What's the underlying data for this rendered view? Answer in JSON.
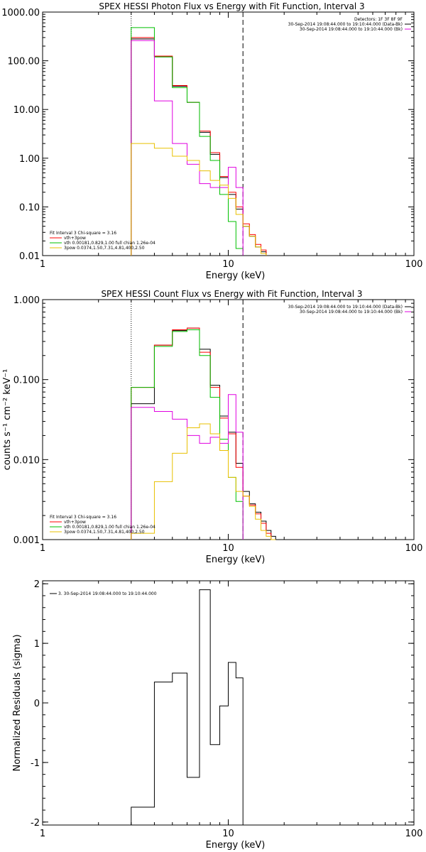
{
  "colors": {
    "black": "#000000",
    "red": "#ff0000",
    "green": "#00c000",
    "magenta": "#e000e0",
    "yellow": "#e8c000"
  },
  "chart_data": [
    {
      "type": "line",
      "title": "SPEX HESSI Photon Flux vs Energy with Fit Function, Interval 3",
      "xlabel": "Energy (keV)",
      "ylabel": "",
      "xscale": "log",
      "yscale": "log",
      "xlim": [
        1,
        100
      ],
      "ylim": [
        0.01,
        1000
      ],
      "xticks": [
        {
          "v": 1,
          "label": "1"
        },
        {
          "v": 10,
          "label": "10"
        },
        {
          "v": 100,
          "label": "100"
        }
      ],
      "yticks": [
        {
          "v": 1000,
          "label": "1000.00"
        },
        {
          "v": 100,
          "label": "100.00"
        },
        {
          "v": 10,
          "label": "10.00"
        },
        {
          "v": 1,
          "label": "1.00"
        },
        {
          "v": 0.1,
          "label": "0.10"
        },
        {
          "v": 0.01,
          "label": "0.01"
        }
      ],
      "vlines": [
        {
          "x": 3.0,
          "style": "dotted"
        },
        {
          "x": 12.0,
          "style": "dashed"
        }
      ],
      "legend_right": [
        "Detectors: 1F 3F 8F 9F",
        "30-Sep-2014 19:08:44.000 to 19:10:44.000 (Data-Bk)",
        "30-Sep-2014 19:08:44.000 to 19:10:44.000 (Bk)"
      ],
      "legend_left": [
        "Fit Interval  3   Chi-square = 3.16",
        "vth+3pow",
        "vth 0.00181,0.829,1.00  full chian 1.26e-04",
        "3pow 0.0374,1.50,7.31,4.81,400,2.50"
      ],
      "series": [
        {
          "color": "black",
          "edges": [
            3,
            4,
            5,
            6,
            7,
            8,
            9,
            10,
            11,
            12,
            13,
            14,
            15,
            16
          ],
          "values": [
            280,
            120,
            30,
            14,
            3.4,
            1.2,
            0.4,
            0.18,
            0.09,
            0.04,
            0.025,
            0.015,
            0.012
          ]
        },
        {
          "color": "red",
          "edges": [
            3,
            4,
            5,
            6,
            7,
            8,
            9,
            10,
            11,
            12,
            13,
            14,
            15,
            16
          ],
          "values": [
            300,
            125,
            31,
            14,
            3.6,
            1.3,
            0.42,
            0.2,
            0.1,
            0.045,
            0.027,
            0.017,
            0.013
          ]
        },
        {
          "color": "green",
          "edges": [
            3,
            4,
            5,
            6,
            7,
            8,
            9,
            10,
            11,
            12
          ],
          "values": [
            480,
            120,
            28,
            14,
            2.8,
            0.9,
            0.18,
            0.05,
            0.014
          ]
        },
        {
          "color": "magenta",
          "edges": [
            3,
            4,
            5,
            6,
            7,
            8,
            9,
            10,
            11,
            12
          ],
          "values": [
            260,
            15,
            2,
            0.75,
            0.3,
            0.25,
            0.25,
            0.65,
            0.25
          ]
        },
        {
          "color": "yellow",
          "edges": [
            3,
            4,
            5,
            6,
            7,
            8,
            9,
            10,
            11,
            12,
            13,
            14,
            15,
            16
          ],
          "values": [
            2.0,
            1.6,
            1.1,
            0.9,
            0.55,
            0.35,
            0.28,
            0.15,
            0.07,
            0.04,
            0.025,
            0.015,
            0.011
          ]
        }
      ]
    },
    {
      "type": "line",
      "title": "SPEX HESSI Count Flux vs Energy with Fit Function, Interval 3",
      "xlabel": "Energy (keV)",
      "ylabel": "counts s⁻¹ cm⁻² keV⁻¹",
      "xscale": "log",
      "yscale": "log",
      "xlim": [
        1,
        100
      ],
      "ylim": [
        0.001,
        1
      ],
      "xticks": [
        {
          "v": 1,
          "label": "1"
        },
        {
          "v": 10,
          "label": "10"
        },
        {
          "v": 100,
          "label": "100"
        }
      ],
      "yticks": [
        {
          "v": 1,
          "label": "1.000"
        },
        {
          "v": 0.1,
          "label": "0.100"
        },
        {
          "v": 0.01,
          "label": "0.010"
        },
        {
          "v": 0.001,
          "label": "0.001"
        }
      ],
      "vlines": [
        {
          "x": 3.0,
          "style": "dotted"
        },
        {
          "x": 12.0,
          "style": "dashed"
        }
      ],
      "legend_right": [
        "30-Sep-2014 19:08:44.000 to 19:10:44.000 (Data-Bk)",
        "30-Sep-2014 19:08:44.000 to 19:10:44.000 (Bk)"
      ],
      "legend_left": [
        "Fit Interval  3   Chi-square = 3.16",
        "vth+3pow",
        "vth 0.00181,0.829,1.00  full chian 1.26e-04",
        "3pow 0.0374,1.50,7.31,4.81,400,2.50"
      ],
      "series": [
        {
          "color": "black",
          "edges": [
            3,
            4,
            5,
            6,
            7,
            8,
            9,
            10,
            11,
            12,
            13,
            14,
            15,
            16,
            17,
            18
          ],
          "values": [
            0.05,
            0.27,
            0.41,
            0.44,
            0.24,
            0.085,
            0.035,
            0.022,
            0.009,
            0.004,
            0.0028,
            0.0022,
            0.0017,
            0.0013,
            0.0011
          ]
        },
        {
          "color": "red",
          "edges": [
            3,
            4,
            5,
            6,
            7,
            8,
            9,
            10,
            11,
            12,
            13,
            14,
            15,
            16,
            17,
            18
          ],
          "values": [
            0.08,
            0.27,
            0.42,
            0.44,
            0.22,
            0.08,
            0.033,
            0.021,
            0.008,
            0.0035,
            0.0027,
            0.0021,
            0.0016,
            0.0012,
            0.001
          ]
        },
        {
          "color": "green",
          "edges": [
            3,
            4,
            5,
            6,
            7,
            8,
            9,
            10,
            11,
            12
          ],
          "values": [
            0.08,
            0.26,
            0.4,
            0.42,
            0.2,
            0.06,
            0.018,
            0.006,
            0.003
          ]
        },
        {
          "color": "magenta",
          "edges": [
            3,
            4,
            5,
            6,
            7,
            8,
            9,
            10,
            11,
            12
          ],
          "values": [
            0.045,
            0.04,
            0.032,
            0.02,
            0.016,
            0.019,
            0.016,
            0.065,
            0.022
          ]
        },
        {
          "color": "yellow",
          "edges": [
            3,
            4,
            5,
            6,
            7,
            8,
            9,
            10,
            11,
            12,
            13,
            14,
            15,
            16,
            17,
            18
          ],
          "values": [
            0.0012,
            0.0053,
            0.012,
            0.025,
            0.028,
            0.021,
            0.013,
            0.006,
            0.004,
            0.0035,
            0.0026,
            0.0018,
            0.0013,
            0.0011,
            0.0009
          ]
        }
      ]
    },
    {
      "type": "line",
      "title": "",
      "xlabel": "Energy (keV)",
      "ylabel": "Normalized Residuals (sigma)",
      "xscale": "log",
      "yscale": "linear",
      "xlim": [
        1,
        100
      ],
      "ylim": [
        -2.05,
        2.05
      ],
      "xticks": [
        {
          "v": 1,
          "label": "1"
        },
        {
          "v": 10,
          "label": "10"
        },
        {
          "v": 100,
          "label": "100"
        }
      ],
      "yticks": [
        {
          "v": 2,
          "label": "2"
        },
        {
          "v": 1,
          "label": "1"
        },
        {
          "v": 0,
          "label": "0"
        },
        {
          "v": -1,
          "label": "-1"
        },
        {
          "v": -2,
          "label": "-2"
        }
      ],
      "vlines": [],
      "legend_left": [
        "3. 30-Sep-2014 19:08:44.000 to 19:10:44.000"
      ],
      "series": [
        {
          "color": "black",
          "edges": [
            3,
            4,
            5,
            6,
            7,
            8,
            9,
            10,
            11,
            12
          ],
          "values": [
            -1.75,
            0.35,
            0.5,
            -1.25,
            1.9,
            -0.7,
            -0.05,
            0.68,
            0.42
          ]
        }
      ]
    }
  ]
}
